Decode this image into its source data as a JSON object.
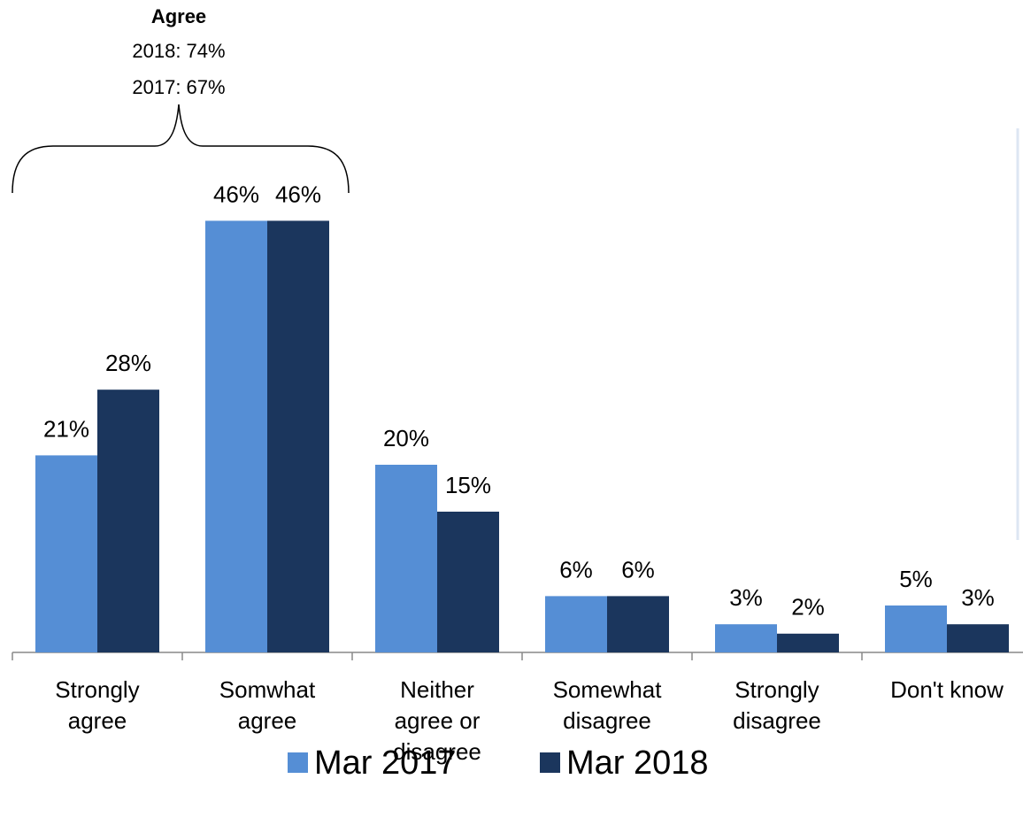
{
  "chart_data": {
    "type": "bar",
    "annotation": {
      "title": "Agree",
      "lines": [
        "2018: 74%",
        "2017: 67%"
      ]
    },
    "categories": [
      "Strongly agree",
      "Somwhat agree",
      "Neither agree or disagree",
      "Somewhat disagree",
      "Strongly disagree",
      "Don't know"
    ],
    "series": [
      {
        "name": "Mar 2017",
        "color": "#558ed5",
        "values": [
          21,
          46,
          20,
          6,
          3,
          5
        ],
        "value_labels": [
          "21%",
          "46%",
          "20%",
          "6%",
          "3%",
          "5%"
        ]
      },
      {
        "name": "Mar 2018",
        "color": "#1b365d",
        "values": [
          28,
          46,
          15,
          6,
          2,
          3
        ],
        "value_labels": [
          "28%",
          "46%",
          "15%",
          "6%",
          "2%",
          "3%"
        ]
      }
    ]
  }
}
